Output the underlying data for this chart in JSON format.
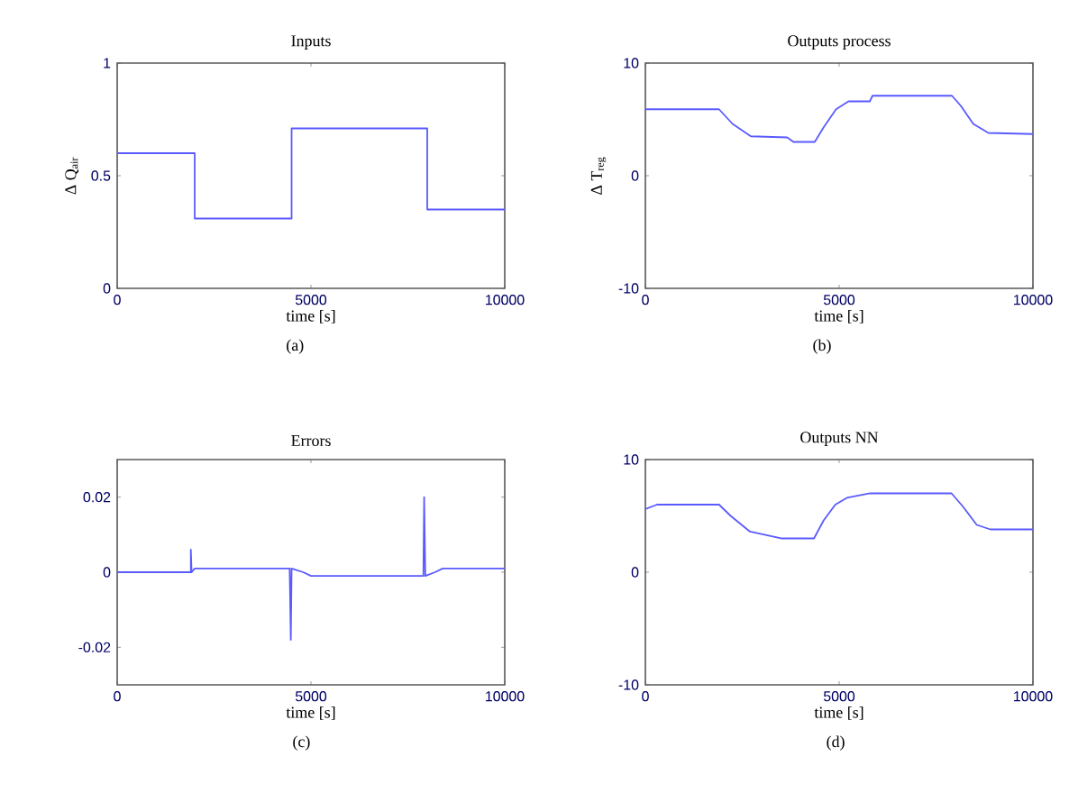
{
  "chart_data": [
    {
      "type": "step",
      "title": "Inputs",
      "xlabel": "time [s]",
      "ylabel": "Δ Q$_{air}$",
      "annotations": [
        "(a)"
      ],
      "color": "#5a5aff",
      "xlim": [
        0,
        10000
      ],
      "ylim": [
        0,
        1
      ],
      "xticks": [
        0,
        5000,
        10000
      ],
      "yticks": [
        0,
        0.5,
        1
      ],
      "x": [
        0,
        2000,
        4500,
        8000,
        10000
      ],
      "values": [
        0.6,
        0.31,
        0.71,
        0.35,
        0.35
      ]
    },
    {
      "type": "line",
      "title": "Outputs process",
      "xlabel": "time [s]",
      "ylabel": "Δ T$_{reg}$",
      "annotations": [
        "(b)"
      ],
      "color": "#5a5aff",
      "xlim": [
        0,
        10000
      ],
      "ylim": [
        -10,
        10
      ],
      "xticks": [
        0,
        5000,
        10000
      ],
      "yticks": [
        -10,
        0,
        10
      ],
      "x": [
        0,
        1900,
        2250,
        2720,
        3660,
        3820,
        4370,
        4600,
        4920,
        5240,
        5790,
        5860,
        7910,
        8140,
        8460,
        8850,
        10000
      ],
      "values": [
        5.9,
        5.9,
        4.6,
        3.5,
        3.4,
        3.0,
        3.0,
        4.3,
        5.9,
        6.6,
        6.6,
        7.1,
        7.1,
        6.2,
        4.6,
        3.8,
        3.7
      ]
    },
    {
      "type": "line",
      "title": "Errors",
      "xlabel": "time [s]",
      "annotations": [
        "(c)"
      ],
      "color": "#5a5aff",
      "xlim": [
        0,
        10000
      ],
      "ylim": [
        -0.03,
        0.03
      ],
      "xticks": [
        0,
        5000,
        10000
      ],
      "yticks": [
        -0.02,
        0,
        0.02
      ],
      "x": [
        0,
        1900,
        1900,
        1920,
        2000,
        4450,
        4480,
        4500,
        4800,
        5000,
        7900,
        7920,
        7950,
        8200,
        8400,
        10000
      ],
      "values": [
        0,
        0,
        0.006,
        0,
        0.001,
        0.001,
        -0.018,
        0.001,
        0,
        -0.001,
        -0.001,
        0.02,
        -0.001,
        0,
        0.001,
        0.001
      ]
    },
    {
      "type": "line",
      "title": "Outputs NN",
      "xlabel": "time [s]",
      "annotations": [
        "(d)"
      ],
      "color": "#5a5aff",
      "xlim": [
        0,
        10000
      ],
      "ylim": [
        -10,
        10
      ],
      "xticks": [
        0,
        5000,
        10000
      ],
      "yticks": [
        -10,
        0,
        10
      ],
      "x": [
        0,
        300,
        1900,
        2200,
        2700,
        3100,
        3500,
        4350,
        4600,
        4900,
        5200,
        5800,
        7900,
        8200,
        8550,
        8900,
        10000
      ],
      "values": [
        5.6,
        6.0,
        6.0,
        5.0,
        3.6,
        3.3,
        3.0,
        3.0,
        4.6,
        6.0,
        6.6,
        7.0,
        7.0,
        5.8,
        4.2,
        3.8,
        3.8
      ]
    }
  ]
}
